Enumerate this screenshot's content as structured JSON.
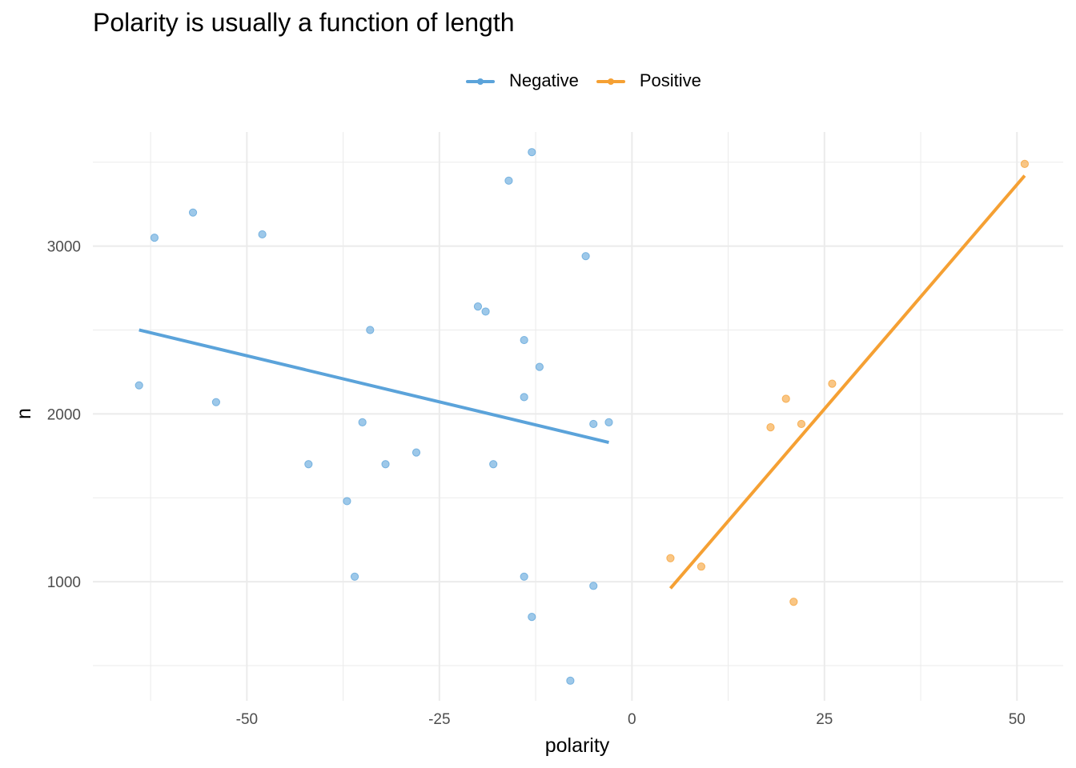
{
  "chart_data": {
    "type": "scatter",
    "title": "Polarity is usually a function of length",
    "xlabel": "polarity",
    "ylabel": "n",
    "xlim": [
      -70,
      56
    ],
    "ylim": [
      290,
      3680
    ],
    "x_ticks": [
      -50,
      -25,
      0,
      25,
      50
    ],
    "x_tick_labels": [
      "-50",
      "-25",
      "0",
      "25",
      "50"
    ],
    "y_ticks": [
      1000,
      2000,
      3000
    ],
    "y_tick_labels": [
      "1000",
      "2000",
      "3000"
    ],
    "grid": true,
    "legend_position": "top",
    "series": [
      {
        "name": "Negative",
        "color": "#5BA3DA",
        "points": [
          [
            -64,
            2170
          ],
          [
            -62,
            3050
          ],
          [
            -57,
            3200
          ],
          [
            -54,
            2070
          ],
          [
            -48,
            3070
          ],
          [
            -42,
            1700
          ],
          [
            -37,
            1480
          ],
          [
            -36,
            1030
          ],
          [
            -35,
            1950
          ],
          [
            -34,
            2500
          ],
          [
            -32,
            1700
          ],
          [
            -28,
            1770
          ],
          [
            -20,
            2640
          ],
          [
            -19,
            2610
          ],
          [
            -18,
            1700
          ],
          [
            -16,
            3390
          ],
          [
            -14,
            2440
          ],
          [
            -14,
            2100
          ],
          [
            -14,
            1030
          ],
          [
            -13,
            3560
          ],
          [
            -13,
            790
          ],
          [
            -12,
            2280
          ],
          [
            -8,
            410
          ],
          [
            -6,
            2940
          ],
          [
            -5,
            1940
          ],
          [
            -5,
            975
          ],
          [
            -3,
            1950
          ]
        ],
        "trend": [
          [
            -64,
            2500
          ],
          [
            -3,
            1830
          ]
        ]
      },
      {
        "name": "Positive",
        "color": "#F5A033",
        "points": [
          [
            5,
            1140
          ],
          [
            9,
            1090
          ],
          [
            18,
            1920
          ],
          [
            20,
            2090
          ],
          [
            21,
            880
          ],
          [
            22,
            1940
          ],
          [
            26,
            2180
          ],
          [
            51,
            3490
          ]
        ],
        "trend": [
          [
            5,
            960
          ],
          [
            51,
            3420
          ]
        ]
      }
    ]
  }
}
